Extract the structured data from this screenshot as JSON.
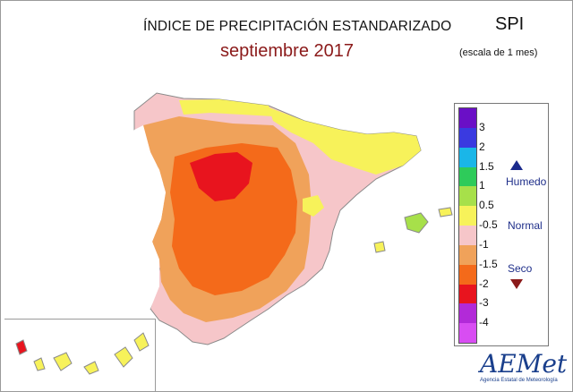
{
  "title": "ÍNDICE DE PRECIPITACIÓN ESTANDARIZADO",
  "subtitle": "septiembre 2017",
  "index_name": "SPI",
  "scale_note": "(escala de 1 mes)",
  "legend": {
    "ticks": [
      "3",
      "2",
      "1.5",
      "1",
      "0.5",
      "-0.5",
      "-1",
      "-1.5",
      "-2",
      "-3",
      "-4"
    ],
    "colors": [
      "#6a0fc6",
      "#3a3ae0",
      "#1ab6e8",
      "#2ecb5a",
      "#a7e04a",
      "#f7f25a",
      "#f6c6c9",
      "#f0a25a",
      "#f46a1a",
      "#e8141e",
      "#b22ad8",
      "#d84df2"
    ],
    "categories": {
      "wet": "Humedo",
      "normal": "Normal",
      "dry": "Seco"
    }
  },
  "logo": {
    "name": "AEMet",
    "subtext": "Agencia Estatal de Meteorología"
  }
}
